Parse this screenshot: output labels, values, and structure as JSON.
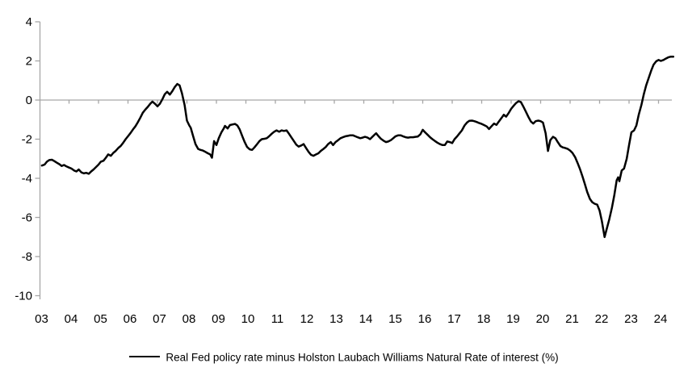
{
  "chart_data": {
    "type": "line",
    "title": "",
    "xlabel": "",
    "ylabel": "",
    "background_color": "#ffffff",
    "axis_color": "#a6a6a6",
    "grid": "zero-line-only",
    "legend_position": "bottom-center",
    "y_axis": {
      "range": [
        -10,
        4
      ],
      "ticks": [
        {
          "value": 4,
          "label": "4"
        },
        {
          "value": 2,
          "label": "2"
        },
        {
          "value": 0,
          "label": "0"
        },
        {
          "value": -2,
          "label": "-2"
        },
        {
          "value": -4,
          "label": "-4"
        },
        {
          "value": -6,
          "label": "-6"
        },
        {
          "value": -8,
          "label": "-8"
        },
        {
          "value": -10,
          "label": "-10"
        }
      ]
    },
    "x_axis": {
      "range": [
        2003,
        2024.6
      ],
      "ticks": [
        {
          "year": 2003,
          "label": "03"
        },
        {
          "year": 2004,
          "label": "04"
        },
        {
          "year": 2005,
          "label": "05"
        },
        {
          "year": 2006,
          "label": "06"
        },
        {
          "year": 2007,
          "label": "07"
        },
        {
          "year": 2008,
          "label": "08"
        },
        {
          "year": 2009,
          "label": "09"
        },
        {
          "year": 2010,
          "label": "10"
        },
        {
          "year": 2011,
          "label": "11"
        },
        {
          "year": 2012,
          "label": "12"
        },
        {
          "year": 2013,
          "label": "13"
        },
        {
          "year": 2014,
          "label": "14"
        },
        {
          "year": 2015,
          "label": "15"
        },
        {
          "year": 2016,
          "label": "16"
        },
        {
          "year": 2017,
          "label": "17"
        },
        {
          "year": 2018,
          "label": "18"
        },
        {
          "year": 2019,
          "label": "19"
        },
        {
          "year": 2020,
          "label": "20"
        },
        {
          "year": 2021,
          "label": "21"
        },
        {
          "year": 2022,
          "label": "22"
        },
        {
          "year": 2023,
          "label": "23"
        },
        {
          "year": 2024,
          "label": "24"
        }
      ]
    },
    "series": [
      {
        "name": "Real Fed policy rate minus Holston Laubach Williams Natural Rate of interest (%)",
        "color": "#000000",
        "points": [
          [
            2003.08,
            -3.35
          ],
          [
            2003.17,
            -3.3
          ],
          [
            2003.25,
            -3.15
          ],
          [
            2003.33,
            -3.07
          ],
          [
            2003.42,
            -3.05
          ],
          [
            2003.5,
            -3.12
          ],
          [
            2003.58,
            -3.2
          ],
          [
            2003.67,
            -3.28
          ],
          [
            2003.75,
            -3.37
          ],
          [
            2003.83,
            -3.32
          ],
          [
            2003.92,
            -3.4
          ],
          [
            2004,
            -3.45
          ],
          [
            2004.08,
            -3.5
          ],
          [
            2004.17,
            -3.6
          ],
          [
            2004.25,
            -3.65
          ],
          [
            2004.33,
            -3.55
          ],
          [
            2004.42,
            -3.7
          ],
          [
            2004.5,
            -3.75
          ],
          [
            2004.58,
            -3.72
          ],
          [
            2004.67,
            -3.77
          ],
          [
            2004.75,
            -3.65
          ],
          [
            2004.83,
            -3.55
          ],
          [
            2004.92,
            -3.42
          ],
          [
            2005,
            -3.3
          ],
          [
            2005.08,
            -3.15
          ],
          [
            2005.17,
            -3.1
          ],
          [
            2005.25,
            -2.95
          ],
          [
            2005.33,
            -2.78
          ],
          [
            2005.42,
            -2.85
          ],
          [
            2005.5,
            -2.7
          ],
          [
            2005.58,
            -2.6
          ],
          [
            2005.67,
            -2.45
          ],
          [
            2005.75,
            -2.35
          ],
          [
            2005.83,
            -2.2
          ],
          [
            2005.92,
            -2.0
          ],
          [
            2006,
            -1.85
          ],
          [
            2006.08,
            -1.7
          ],
          [
            2006.17,
            -1.5
          ],
          [
            2006.25,
            -1.35
          ],
          [
            2006.33,
            -1.15
          ],
          [
            2006.42,
            -0.9
          ],
          [
            2006.5,
            -0.65
          ],
          [
            2006.58,
            -0.5
          ],
          [
            2006.67,
            -0.35
          ],
          [
            2006.75,
            -0.2
          ],
          [
            2006.83,
            -0.08
          ],
          [
            2006.92,
            -0.2
          ],
          [
            2007,
            -0.32
          ],
          [
            2007.08,
            -0.2
          ],
          [
            2007.17,
            0.05
          ],
          [
            2007.25,
            0.3
          ],
          [
            2007.33,
            0.42
          ],
          [
            2007.42,
            0.28
          ],
          [
            2007.5,
            0.45
          ],
          [
            2007.58,
            0.65
          ],
          [
            2007.67,
            0.82
          ],
          [
            2007.75,
            0.75
          ],
          [
            2007.83,
            0.35
          ],
          [
            2007.92,
            -0.25
          ],
          [
            2008,
            -1.05
          ],
          [
            2008.08,
            -1.3
          ],
          [
            2008.13,
            -1.42
          ],
          [
            2008.21,
            -1.85
          ],
          [
            2008.29,
            -2.25
          ],
          [
            2008.38,
            -2.5
          ],
          [
            2008.46,
            -2.55
          ],
          [
            2008.54,
            -2.58
          ],
          [
            2008.63,
            -2.65
          ],
          [
            2008.71,
            -2.72
          ],
          [
            2008.79,
            -2.78
          ],
          [
            2008.85,
            -2.95
          ],
          [
            2008.92,
            -2.1
          ],
          [
            2009,
            -2.3
          ],
          [
            2009.08,
            -1.95
          ],
          [
            2009.17,
            -1.65
          ],
          [
            2009.25,
            -1.45
          ],
          [
            2009.29,
            -1.32
          ],
          [
            2009.38,
            -1.45
          ],
          [
            2009.46,
            -1.28
          ],
          [
            2009.54,
            -1.25
          ],
          [
            2009.63,
            -1.22
          ],
          [
            2009.71,
            -1.3
          ],
          [
            2009.79,
            -1.5
          ],
          [
            2009.88,
            -1.85
          ],
          [
            2009.96,
            -2.15
          ],
          [
            2010.04,
            -2.4
          ],
          [
            2010.13,
            -2.52
          ],
          [
            2010.21,
            -2.55
          ],
          [
            2010.29,
            -2.42
          ],
          [
            2010.38,
            -2.25
          ],
          [
            2010.46,
            -2.1
          ],
          [
            2010.54,
            -2.0
          ],
          [
            2010.63,
            -1.98
          ],
          [
            2010.71,
            -1.95
          ],
          [
            2010.79,
            -1.85
          ],
          [
            2010.88,
            -1.72
          ],
          [
            2010.96,
            -1.62
          ],
          [
            2011.04,
            -1.55
          ],
          [
            2011.13,
            -1.62
          ],
          [
            2011.21,
            -1.55
          ],
          [
            2011.29,
            -1.58
          ],
          [
            2011.38,
            -1.55
          ],
          [
            2011.46,
            -1.72
          ],
          [
            2011.54,
            -1.9
          ],
          [
            2011.63,
            -2.1
          ],
          [
            2011.71,
            -2.28
          ],
          [
            2011.79,
            -2.38
          ],
          [
            2011.88,
            -2.32
          ],
          [
            2011.96,
            -2.25
          ],
          [
            2012.04,
            -2.45
          ],
          [
            2012.13,
            -2.65
          ],
          [
            2012.21,
            -2.8
          ],
          [
            2012.29,
            -2.85
          ],
          [
            2012.38,
            -2.78
          ],
          [
            2012.46,
            -2.72
          ],
          [
            2012.54,
            -2.6
          ],
          [
            2012.63,
            -2.5
          ],
          [
            2012.71,
            -2.4
          ],
          [
            2012.79,
            -2.25
          ],
          [
            2012.88,
            -2.15
          ],
          [
            2012.96,
            -2.3
          ],
          [
            2013.04,
            -2.15
          ],
          [
            2013.13,
            -2.05
          ],
          [
            2013.21,
            -1.95
          ],
          [
            2013.29,
            -1.9
          ],
          [
            2013.38,
            -1.85
          ],
          [
            2013.46,
            -1.83
          ],
          [
            2013.54,
            -1.8
          ],
          [
            2013.63,
            -1.8
          ],
          [
            2013.71,
            -1.85
          ],
          [
            2013.79,
            -1.9
          ],
          [
            2013.88,
            -1.95
          ],
          [
            2013.96,
            -1.92
          ],
          [
            2014.04,
            -1.88
          ],
          [
            2014.13,
            -1.92
          ],
          [
            2014.21,
            -2.0
          ],
          [
            2014.29,
            -1.88
          ],
          [
            2014.38,
            -1.75
          ],
          [
            2014.42,
            -1.7
          ],
          [
            2014.5,
            -1.85
          ],
          [
            2014.58,
            -1.98
          ],
          [
            2014.67,
            -2.08
          ],
          [
            2014.75,
            -2.15
          ],
          [
            2014.83,
            -2.12
          ],
          [
            2014.92,
            -2.05
          ],
          [
            2015,
            -1.95
          ],
          [
            2015.08,
            -1.85
          ],
          [
            2015.17,
            -1.8
          ],
          [
            2015.25,
            -1.8
          ],
          [
            2015.33,
            -1.85
          ],
          [
            2015.42,
            -1.9
          ],
          [
            2015.5,
            -1.92
          ],
          [
            2015.58,
            -1.9
          ],
          [
            2015.67,
            -1.9
          ],
          [
            2015.75,
            -1.88
          ],
          [
            2015.83,
            -1.87
          ],
          [
            2015.92,
            -1.75
          ],
          [
            2016,
            -1.52
          ],
          [
            2016.08,
            -1.65
          ],
          [
            2016.17,
            -1.78
          ],
          [
            2016.25,
            -1.9
          ],
          [
            2016.33,
            -2.0
          ],
          [
            2016.42,
            -2.1
          ],
          [
            2016.5,
            -2.18
          ],
          [
            2016.58,
            -2.25
          ],
          [
            2016.67,
            -2.3
          ],
          [
            2016.75,
            -2.3
          ],
          [
            2016.83,
            -2.12
          ],
          [
            2016.92,
            -2.15
          ],
          [
            2017,
            -2.2
          ],
          [
            2017.08,
            -2.0
          ],
          [
            2017.17,
            -1.85
          ],
          [
            2017.25,
            -1.7
          ],
          [
            2017.33,
            -1.55
          ],
          [
            2017.42,
            -1.3
          ],
          [
            2017.5,
            -1.15
          ],
          [
            2017.58,
            -1.06
          ],
          [
            2017.67,
            -1.05
          ],
          [
            2017.75,
            -1.08
          ],
          [
            2017.83,
            -1.12
          ],
          [
            2017.92,
            -1.18
          ],
          [
            2018,
            -1.22
          ],
          [
            2018.08,
            -1.28
          ],
          [
            2018.17,
            -1.35
          ],
          [
            2018.25,
            -1.48
          ],
          [
            2018.33,
            -1.35
          ],
          [
            2018.42,
            -1.2
          ],
          [
            2018.5,
            -1.27
          ],
          [
            2018.58,
            -1.1
          ],
          [
            2018.67,
            -0.92
          ],
          [
            2018.75,
            -0.75
          ],
          [
            2018.83,
            -0.85
          ],
          [
            2018.92,
            -0.65
          ],
          [
            2019,
            -0.45
          ],
          [
            2019.08,
            -0.3
          ],
          [
            2019.17,
            -0.15
          ],
          [
            2019.25,
            -0.06
          ],
          [
            2019.33,
            -0.1
          ],
          [
            2019.42,
            -0.35
          ],
          [
            2019.5,
            -0.6
          ],
          [
            2019.58,
            -0.85
          ],
          [
            2019.67,
            -1.1
          ],
          [
            2019.75,
            -1.2
          ],
          [
            2019.83,
            -1.08
          ],
          [
            2019.92,
            -1.05
          ],
          [
            2020,
            -1.08
          ],
          [
            2020.08,
            -1.15
          ],
          [
            2020.17,
            -1.7
          ],
          [
            2020.25,
            -2.6
          ],
          [
            2020.33,
            -2.05
          ],
          [
            2020.42,
            -1.88
          ],
          [
            2020.5,
            -1.95
          ],
          [
            2020.58,
            -2.15
          ],
          [
            2020.67,
            -2.35
          ],
          [
            2020.75,
            -2.42
          ],
          [
            2020.83,
            -2.45
          ],
          [
            2020.92,
            -2.5
          ],
          [
            2021,
            -2.58
          ],
          [
            2021.08,
            -2.7
          ],
          [
            2021.17,
            -2.92
          ],
          [
            2021.25,
            -3.2
          ],
          [
            2021.33,
            -3.5
          ],
          [
            2021.42,
            -3.9
          ],
          [
            2021.5,
            -4.3
          ],
          [
            2021.58,
            -4.7
          ],
          [
            2021.67,
            -5.05
          ],
          [
            2021.75,
            -5.22
          ],
          [
            2021.83,
            -5.3
          ],
          [
            2021.92,
            -5.35
          ],
          [
            2022,
            -5.65
          ],
          [
            2022.08,
            -6.2
          ],
          [
            2022.17,
            -7.0
          ],
          [
            2022.25,
            -6.55
          ],
          [
            2022.33,
            -6.1
          ],
          [
            2022.42,
            -5.5
          ],
          [
            2022.5,
            -4.85
          ],
          [
            2022.58,
            -4.1
          ],
          [
            2022.63,
            -3.95
          ],
          [
            2022.67,
            -4.15
          ],
          [
            2022.75,
            -3.6
          ],
          [
            2022.83,
            -3.5
          ],
          [
            2022.92,
            -3.0
          ],
          [
            2023,
            -2.3
          ],
          [
            2023.08,
            -1.65
          ],
          [
            2023.17,
            -1.55
          ],
          [
            2023.25,
            -1.3
          ],
          [
            2023.33,
            -0.75
          ],
          [
            2023.42,
            -0.25
          ],
          [
            2023.5,
            0.3
          ],
          [
            2023.58,
            0.75
          ],
          [
            2023.67,
            1.15
          ],
          [
            2023.75,
            1.5
          ],
          [
            2023.83,
            1.8
          ],
          [
            2023.92,
            1.98
          ],
          [
            2024,
            2.05
          ],
          [
            2024.08,
            2.0
          ],
          [
            2024.17,
            2.05
          ],
          [
            2024.25,
            2.12
          ],
          [
            2024.33,
            2.18
          ],
          [
            2024.42,
            2.22
          ],
          [
            2024.5,
            2.22
          ]
        ]
      }
    ]
  },
  "legend": {
    "label": "Real Fed policy rate minus Holston Laubach Williams Natural Rate of interest (%)"
  }
}
